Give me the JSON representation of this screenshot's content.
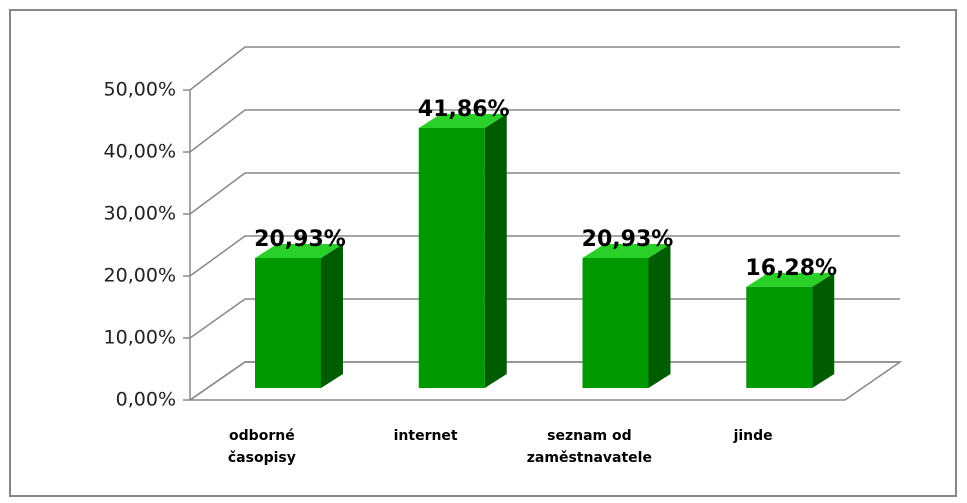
{
  "chart_data": {
    "type": "bar",
    "categories": [
      "odborné časopisy",
      "internet",
      "seznam od zaměstnavatele",
      "jinde"
    ],
    "values": [
      20.93,
      41.86,
      20.93,
      16.28
    ],
    "value_labels": [
      "20,93%",
      "41,86%",
      "20,93%",
      "16,28%"
    ],
    "color": "#009900",
    "ylim": [
      0,
      50
    ],
    "yticks": [
      {
        "value": 0,
        "label": "0,00%"
      },
      {
        "value": 10,
        "label": "10,00%"
      },
      {
        "value": 20,
        "label": "20,00%"
      },
      {
        "value": 30,
        "label": "30,00%"
      },
      {
        "value": 40,
        "label": "40,00%"
      },
      {
        "value": 50,
        "label": "50,00%"
      }
    ],
    "grid": true
  }
}
